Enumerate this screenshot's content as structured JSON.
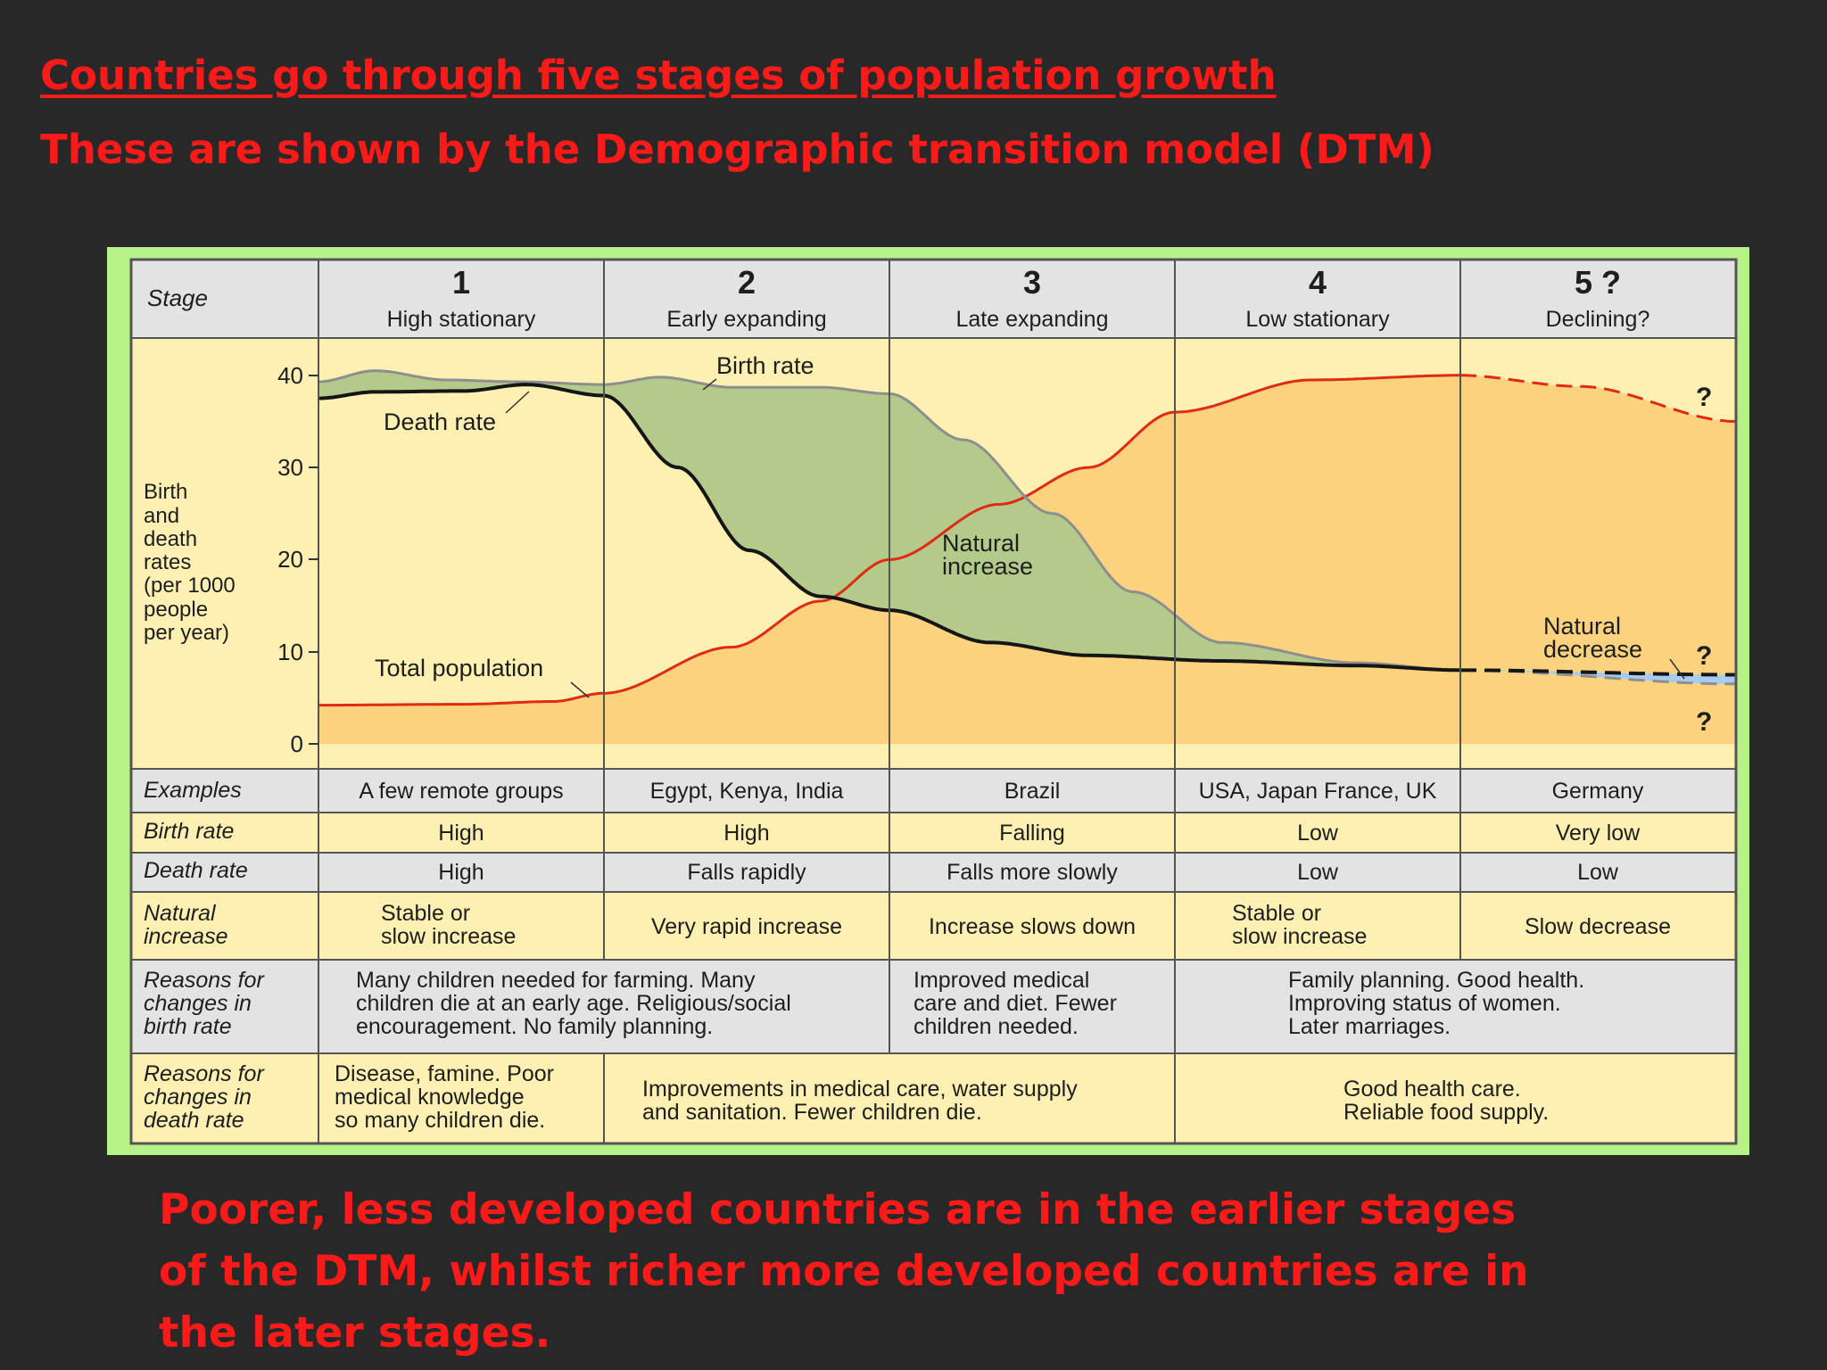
{
  "slide": {
    "title": "Countries go through five stages of population growth",
    "subtitle": "These are shown by the Demographic transition model (DTM)",
    "footer": "Poorer, less developed countries are in the earlier stages of the DTM, whilst richer more developed countries are in the later stages."
  },
  "dtm": {
    "stage_header": "Stage",
    "stages": [
      {
        "num": "1",
        "name": "High stationary",
        "example": "A few remote groups",
        "birth_rate": "High",
        "death_rate": "High",
        "natural_increase": [
          "Stable or",
          "slow increase"
        ]
      },
      {
        "num": "2",
        "name": "Early expanding",
        "example": "Egypt, Kenya, India",
        "birth_rate": "High",
        "death_rate": "Falls rapidly",
        "natural_increase": [
          "Very rapid increase"
        ]
      },
      {
        "num": "3",
        "name": "Late expanding",
        "example": "Brazil",
        "birth_rate": "Falling",
        "death_rate": "Falls more slowly",
        "natural_increase": [
          "Increase slows down"
        ]
      },
      {
        "num": "4",
        "name": "Low stationary",
        "example": "USA, Japan France, UK",
        "birth_rate": "Low",
        "death_rate": "Low",
        "natural_increase": [
          "Stable or",
          "slow increase"
        ]
      },
      {
        "num": "5 ?",
        "name": "Declining?",
        "example": "Germany",
        "birth_rate": "Very low",
        "death_rate": "Low",
        "natural_increase": [
          "Slow decrease"
        ]
      }
    ],
    "y_axis_label": [
      "Birth",
      "and",
      "death",
      "rates",
      "(per 1000",
      "people",
      "per year)"
    ],
    "y_ticks": [
      "40",
      "30",
      "20",
      "10",
      "0"
    ],
    "curve_labels": {
      "birth_rate": "Birth rate",
      "death_rate": "Death rate",
      "total_population": "Total population",
      "natural_increase": [
        "Natural",
        "increase"
      ],
      "natural_decrease": [
        "Natural",
        "decrease"
      ],
      "question": "?"
    },
    "row_labels": {
      "examples": "Examples",
      "birth_rate": "Birth rate",
      "death_rate": "Death rate",
      "natural_increase": [
        "Natural",
        "increase"
      ],
      "birth_reasons": [
        "Reasons for",
        "changes in",
        "birth rate"
      ],
      "death_reasons": [
        "Reasons for",
        "changes in",
        "death rate"
      ]
    },
    "birth_reasons": [
      [
        "Many children needed for farming. Many",
        "children die at an early age. Religious/social",
        "encouragement. No family planning."
      ],
      [
        "Improved medical",
        "care and diet. Fewer",
        "children needed."
      ],
      [
        "Family planning. Good health.",
        "Improving status of women.",
        "Later marriages."
      ]
    ],
    "death_reasons": [
      [
        "Disease, famine. Poor",
        "medical knowledge",
        "so many children die."
      ],
      [
        "Improvements in medical care, water supply",
        "and sanitation. Fewer children die."
      ],
      [
        "Good health care.",
        "Reliable food supply."
      ]
    ],
    "colors": {
      "panel_border": "#b8f08a",
      "chart_bg": "#fdf0b2",
      "population_fill": "#fbd37e",
      "natural_increase_fill": "#b4ca8a",
      "natural_decrease_fill": "#a8ccf0",
      "birth_rate_line": "#8e8e8e",
      "death_rate_line": "#151515",
      "population_line": "#e02a14",
      "title_text": "#ff1a1a"
    }
  }
}
